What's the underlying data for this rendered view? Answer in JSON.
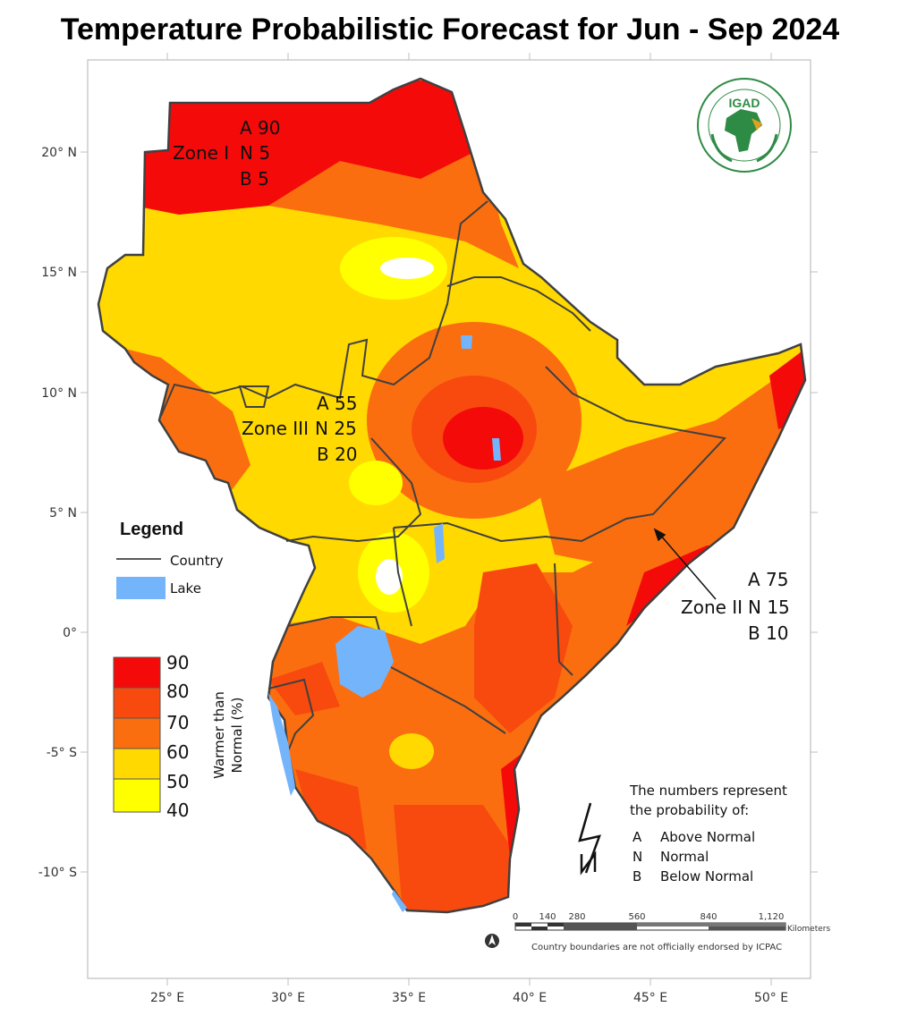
{
  "title": "Temperature Probabilistic Forecast for Jun - Sep 2024",
  "axes": {
    "lon_ticks": [
      "25° E",
      "30° E",
      "35° E",
      "40° E",
      "45° E",
      "50° E"
    ],
    "lat_ticks": [
      "20° N",
      "15° N",
      "10° N",
      "5° N",
      "0°",
      "-5° S",
      "-10° S"
    ]
  },
  "zones": [
    {
      "name": "Zone I",
      "A": "A 90",
      "N": "N 5",
      "B": "B 5"
    },
    {
      "name": "Zone III",
      "A": "A 55",
      "N": "N 25",
      "B": "B 20"
    },
    {
      "name": "Zone II",
      "A": "A 75",
      "N": "N 15",
      "B": "B 10"
    }
  ],
  "legend": {
    "title": "Legend",
    "country": "Country",
    "lake": "Lake",
    "scale_title_1": "Warmer than",
    "scale_title_2": "Normal (%)",
    "scale_values": [
      "90",
      "80",
      "70",
      "60",
      "50",
      "40"
    ],
    "colors": [
      "#f50a0a",
      "#f84a0e",
      "#fa6e10",
      "#ffd900",
      "#ffff00"
    ],
    "lake_color": "#74b4fb"
  },
  "note": {
    "line1": "The numbers represent",
    "line2": "the probability of:",
    "items": [
      {
        "key": "A",
        "label": "Above Normal"
      },
      {
        "key": "N",
        "label": "Normal"
      },
      {
        "key": "B",
        "label": "Below Normal"
      }
    ]
  },
  "scalebar": {
    "labels": [
      "0",
      "140",
      "280",
      "560",
      "840",
      "1,120"
    ],
    "unit": "Kilometers"
  },
  "disclaimer": "Country boundaries are not officially endorsed by ICPAC",
  "logo": {
    "text": "IGAD",
    "ring_text": "INTERGOVERNMENTAL AUTHORITY ON DEVELOPMENT · AUTORITÉ INTERGOUVERNEMENTALE POUR LE DÉVELOPPEMENT"
  }
}
